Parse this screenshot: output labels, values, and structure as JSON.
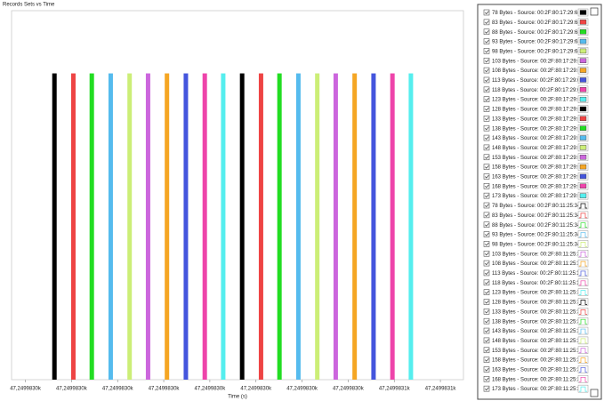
{
  "chart_data": {
    "type": "bar",
    "title": "Records Sets vs Time",
    "x_label": "Time (s)",
    "xlim": [
      0.7,
      10.5
    ],
    "ylim": [
      0,
      1
    ],
    "xticks": [
      {
        "value": 1,
        "label": "47,2499830k"
      },
      {
        "value": 2,
        "label": "47,2499830k"
      },
      {
        "value": 3,
        "label": "47,2499830k"
      },
      {
        "value": 4,
        "label": "47,2499830k"
      },
      {
        "value": 5,
        "label": "47,2499830k"
      },
      {
        "value": 6,
        "label": "47,2499830k"
      },
      {
        "value": 7,
        "label": "47,2499830k"
      },
      {
        "value": 8,
        "label": "47,2499830k"
      },
      {
        "value": 9,
        "label": "47,2499831k"
      },
      {
        "value": 10,
        "label": "47,2499831k"
      }
    ],
    "series": [
      {
        "name": "78 Bytes - Source: 00:2F:80:17:29:68",
        "color": "#000000",
        "x": [
          1.63
        ],
        "values": [
          0.83
        ]
      },
      {
        "name": "83 Bytes - Source: 00:2F:80:17:29:68",
        "color": "#ee4444",
        "x": [
          2.04
        ],
        "values": [
          0.83
        ]
      },
      {
        "name": "88 Bytes - Source: 00:2F:80:17:29:68",
        "color": "#22dd22",
        "x": [
          2.44
        ],
        "values": [
          0.83
        ]
      },
      {
        "name": "93 Bytes - Source: 00:2F:80:17:29:68",
        "color": "#55bbee",
        "x": [
          2.85
        ],
        "values": [
          0.83
        ]
      },
      {
        "name": "98 Bytes - Source: 00:2F:80:17:29:68",
        "color": "#ccee77",
        "x": [
          3.26
        ],
        "values": [
          0.83
        ]
      },
      {
        "name": "103 Bytes - Source: 00:2F:80:17:29:68",
        "color": "#cc66dd",
        "x": [
          3.66
        ],
        "values": [
          0.83
        ]
      },
      {
        "name": "108 Bytes - Source: 00:2F:80:17:29:68",
        "color": "#f5a623",
        "x": [
          4.07
        ],
        "values": [
          0.83
        ]
      },
      {
        "name": "113 Bytes - Source: 00:2F:80:17:29:68",
        "color": "#4455dd",
        "x": [
          4.48
        ],
        "values": [
          0.83
        ]
      },
      {
        "name": "118 Bytes - Source: 00:2F:80:17:29:68",
        "color": "#ee44aa",
        "x": [
          4.89
        ],
        "values": [
          0.83
        ]
      },
      {
        "name": "123 Bytes - Source: 00:2F:80:17:29:68",
        "color": "#55eeee",
        "x": [
          5.29
        ],
        "values": [
          0.83
        ]
      },
      {
        "name": "128 Bytes - Source: 00:2F:80:17:29:68",
        "color": "#000000",
        "x": [
          5.7
        ],
        "values": [
          0.83
        ]
      },
      {
        "name": "133 Bytes - Source: 00:2F:80:17:29:68",
        "color": "#ee4444",
        "x": [
          6.11
        ],
        "values": [
          0.83
        ]
      },
      {
        "name": "138 Bytes - Source: 00:2F:80:17:29:68",
        "color": "#22dd22",
        "x": [
          6.51
        ],
        "values": [
          0.83
        ]
      },
      {
        "name": "143 Bytes - Source: 00:2F:80:17:29:68",
        "color": "#55bbee",
        "x": [
          6.92
        ],
        "values": [
          0.83
        ]
      },
      {
        "name": "148 Bytes - Source: 00:2F:80:17:29:68",
        "color": "#ccee77",
        "x": [
          7.33
        ],
        "values": [
          0.83
        ]
      },
      {
        "name": "153 Bytes - Source: 00:2F:80:17:29:68",
        "color": "#cc66dd",
        "x": [
          7.73
        ],
        "values": [
          0.83
        ]
      },
      {
        "name": "158 Bytes - Source: 00:2F:80:17:29:68",
        "color": "#f5a623",
        "x": [
          8.14
        ],
        "values": [
          0.83
        ]
      },
      {
        "name": "163 Bytes - Source: 00:2F:80:17:29:68",
        "color": "#4455dd",
        "x": [
          8.55
        ],
        "values": [
          0.83
        ]
      },
      {
        "name": "168 Bytes - Source: 00:2F:80:17:29:68",
        "color": "#ee44aa",
        "x": [
          8.96
        ],
        "values": [
          0.83
        ]
      },
      {
        "name": "173 Bytes - Source: 00:2F:80:17:29:68",
        "color": "#55eeee",
        "x": [
          9.36
        ],
        "values": [
          0.83
        ]
      },
      {
        "name": "78 Bytes - Source: 00:2F:80:11:25:34",
        "color": "#000000",
        "x": [],
        "values": []
      },
      {
        "name": "83 Bytes - Source: 00:2F:80:11:25:34",
        "color": "#ee4444",
        "x": [],
        "values": []
      },
      {
        "name": "88 Bytes - Source: 00:2F:80:11:25:34",
        "color": "#22dd22",
        "x": [],
        "values": []
      },
      {
        "name": "93 Bytes - Source: 00:2F:80:11:25:34",
        "color": "#55bbee",
        "x": [],
        "values": []
      },
      {
        "name": "98 Bytes - Source: 00:2F:80:11:25:34",
        "color": "#ccee77",
        "x": [],
        "values": []
      },
      {
        "name": "103 Bytes - Source: 00:2F:80:11:25:34",
        "color": "#cc66dd",
        "x": [],
        "values": []
      },
      {
        "name": "108 Bytes - Source: 00:2F:80:11:25:34",
        "color": "#f5a623",
        "x": [],
        "values": []
      },
      {
        "name": "113 Bytes - Source: 00:2F:80:11:25:34",
        "color": "#4455dd",
        "x": [],
        "values": []
      },
      {
        "name": "118 Bytes - Source: 00:2F:80:11:25:34",
        "color": "#ee44aa",
        "x": [],
        "values": []
      },
      {
        "name": "123 Bytes - Source: 00:2F:80:11:25:34",
        "color": "#55eeee",
        "x": [],
        "values": []
      },
      {
        "name": "128 Bytes - Source: 00:2F:80:11:25:34",
        "color": "#000000",
        "x": [],
        "values": []
      },
      {
        "name": "133 Bytes - Source: 00:2F:80:11:25:34",
        "color": "#ee4444",
        "x": [],
        "values": []
      },
      {
        "name": "138 Bytes - Source: 00:2F:80:11:25:34",
        "color": "#22dd22",
        "x": [],
        "values": []
      },
      {
        "name": "143 Bytes - Source: 00:2F:80:11:25:34",
        "color": "#55bbee",
        "x": [],
        "values": []
      },
      {
        "name": "148 Bytes - Source: 00:2F:80:11:25:34",
        "color": "#ccee77",
        "x": [],
        "values": []
      },
      {
        "name": "153 Bytes - Source: 00:2F:80:11:25:34",
        "color": "#cc66dd",
        "x": [],
        "values": []
      },
      {
        "name": "158 Bytes - Source: 00:2F:80:11:25:34",
        "color": "#f5a623",
        "x": [],
        "values": []
      },
      {
        "name": "163 Bytes - Source: 00:2F:80:11:25:34",
        "color": "#4455dd",
        "x": [],
        "values": []
      },
      {
        "name": "168 Bytes - Source: 00:2F:80:11:25:34",
        "color": "#ee44aa",
        "x": [],
        "values": []
      },
      {
        "name": "173 Bytes - Source: 00:2F:80:11:25:34",
        "color": "#55eeee",
        "x": [],
        "values": []
      }
    ]
  }
}
